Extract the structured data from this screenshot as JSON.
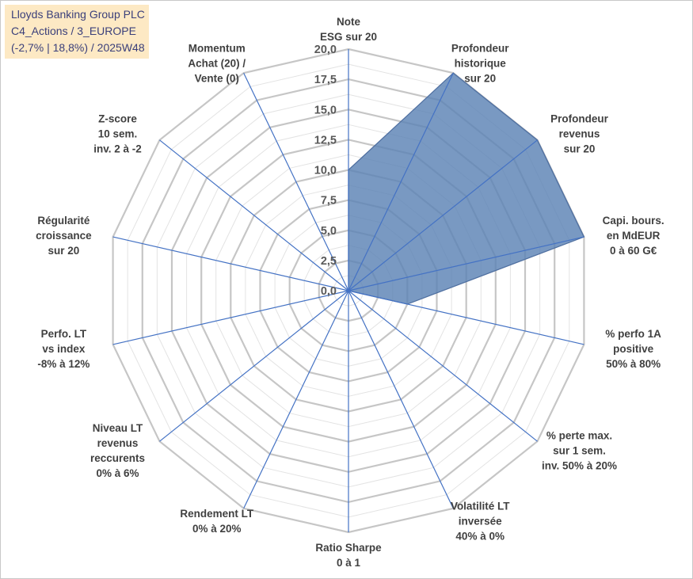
{
  "title": {
    "line1": "Lloyds Banking Group PLC",
    "line2": "C4_Actions / 3_EUROPE",
    "line3": "(-2,7% | 18,8%) / 2025W48"
  },
  "colors": {
    "grid": "#c6c6c6",
    "spoke": "#4472c4",
    "fill": "#5b83b5",
    "title_bg": "#fde9c4"
  },
  "chart_data": {
    "type": "radar",
    "rmax": 20,
    "ticks": [
      "0,0",
      "2,5",
      "5,0",
      "7,5",
      "10,0",
      "12,5",
      "15,0",
      "17,5",
      "20,0"
    ],
    "axes": [
      [
        "Note",
        "ESG sur 20"
      ],
      [
        "Profondeur",
        "historique",
        "sur 20"
      ],
      [
        "Profondeur",
        "revenus",
        "sur 20"
      ],
      [
        "Capi. bours.",
        "en MdEUR",
        "0 à 60 G€"
      ],
      [
        "% perfo 1A",
        "positive",
        "50% à 80%"
      ],
      [
        "% perte max.",
        "sur 1 sem.",
        "inv. 50% à 20%"
      ],
      [
        "Volatilité LT",
        "inversée",
        "40% à 0%"
      ],
      [
        "Ratio Sharpe",
        "0 à 1"
      ],
      [
        "Rendement LT",
        "0% à 20%"
      ],
      [
        "Niveau LT",
        "revenus",
        "reccurents",
        "0% à 6%"
      ],
      [
        "Perfo. LT",
        "vs index",
        "-8% à 12%"
      ],
      [
        "Régularité",
        "croissance",
        "sur 20"
      ],
      [
        "Z-score",
        "10 sem.",
        "inv. 2 à -2"
      ],
      [
        "Momentum",
        "Achat (20) /",
        "Vente (0)"
      ]
    ],
    "values": [
      10,
      20,
      20,
      20,
      5,
      0,
      0,
      0,
      0,
      0,
      0,
      0,
      0,
      0
    ]
  }
}
